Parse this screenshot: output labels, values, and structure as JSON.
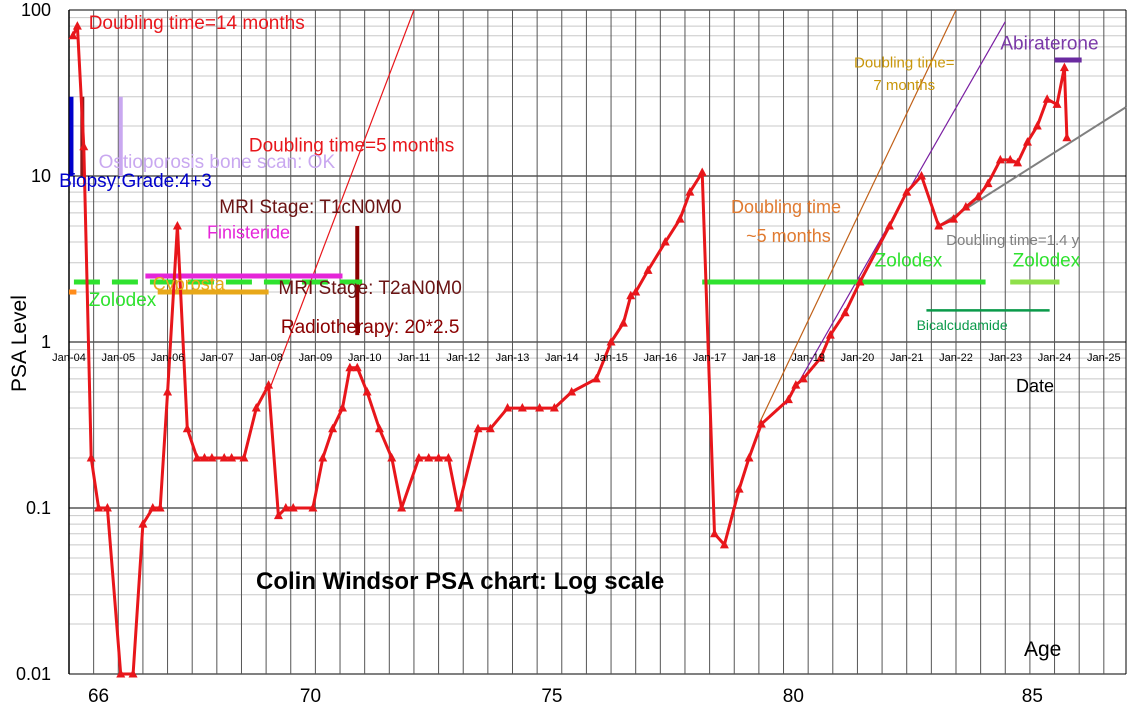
{
  "chart_data": {
    "type": "line",
    "title": "Colin Windsor PSA chart: Log scale",
    "ylabel": "PSA Level",
    "xlabel": "Date",
    "age_label": "Age",
    "yscale": "log",
    "ylim": [
      0.01,
      100
    ],
    "xlim": [
      "Jan-04",
      "Jan-25"
    ],
    "grid": true,
    "y_ticks": [
      "0.01",
      "0.1",
      "1",
      "10",
      "100"
    ],
    "x_ticks": [
      "Jan-04",
      "Jan-05",
      "Jan-06",
      "Jan-07",
      "Jan-08",
      "Jan-09",
      "Jan-10",
      "Jan-11",
      "Jan-12",
      "Jan-13",
      "Jan-14",
      "Jan-15",
      "Jan-16",
      "Jan-17",
      "Jan-18",
      "Jan-19",
      "Jan-20",
      "Jan-21",
      "Jan-22",
      "Jan-23",
      "Jan-24",
      "Jan-25"
    ],
    "age_ticks": [
      {
        "label": "66",
        "t": 2004.6
      },
      {
        "label": "70",
        "t": 2008.9
      },
      {
        "label": "75",
        "t": 2013.8
      },
      {
        "label": "80",
        "t": 2018.7
      },
      {
        "label": "85",
        "t": 2023.55
      }
    ],
    "series": [
      {
        "color": "#e8161b",
        "points": [
          [
            2004.08,
            70
          ],
          [
            2004.17,
            80
          ],
          [
            2004.3,
            15
          ],
          [
            2004.45,
            0.2
          ],
          [
            2004.6,
            0.1
          ],
          [
            2004.78,
            0.1
          ],
          [
            2005.05,
            0.01
          ],
          [
            2005.3,
            0.01
          ],
          [
            2005.5,
            0.08
          ],
          [
            2005.7,
            0.1
          ],
          [
            2005.85,
            0.1
          ],
          [
            2006.0,
            0.5
          ],
          [
            2006.2,
            5
          ],
          [
            2006.4,
            0.3
          ],
          [
            2006.6,
            0.2
          ],
          [
            2006.75,
            0.2
          ],
          [
            2006.9,
            0.2
          ],
          [
            2007.15,
            0.2
          ],
          [
            2007.3,
            0.2
          ],
          [
            2007.55,
            0.2
          ],
          [
            2007.8,
            0.4
          ],
          [
            2008.05,
            0.55
          ],
          [
            2008.25,
            0.09
          ],
          [
            2008.4,
            0.1
          ],
          [
            2008.55,
            0.1
          ],
          [
            2008.95,
            0.1
          ],
          [
            2009.15,
            0.2
          ],
          [
            2009.35,
            0.3
          ],
          [
            2009.55,
            0.4
          ],
          [
            2009.7,
            0.7
          ],
          [
            2009.85,
            0.7
          ],
          [
            2010.05,
            0.5
          ],
          [
            2010.3,
            0.3
          ],
          [
            2010.55,
            0.2
          ],
          [
            2010.75,
            0.1
          ],
          [
            2011.1,
            0.2
          ],
          [
            2011.3,
            0.2
          ],
          [
            2011.5,
            0.2
          ],
          [
            2011.7,
            0.2
          ],
          [
            2011.9,
            0.1
          ],
          [
            2012.3,
            0.3
          ],
          [
            2012.55,
            0.3
          ],
          [
            2012.9,
            0.4
          ],
          [
            2013.2,
            0.4
          ],
          [
            2013.55,
            0.4
          ],
          [
            2013.85,
            0.4
          ],
          [
            2014.2,
            0.5
          ],
          [
            2014.7,
            0.6
          ],
          [
            2015.0,
            1.0
          ],
          [
            2015.25,
            1.3
          ],
          [
            2015.4,
            1.9
          ],
          [
            2015.5,
            2.0
          ],
          [
            2015.75,
            2.7
          ],
          [
            2016.1,
            4.0
          ],
          [
            2016.4,
            5.5
          ],
          [
            2016.6,
            8.0
          ],
          [
            2016.85,
            10.5
          ],
          [
            2017.1,
            0.07
          ],
          [
            2017.3,
            0.06
          ],
          [
            2017.6,
            0.13
          ],
          [
            2017.8,
            0.2
          ],
          [
            2018.05,
            0.32
          ],
          [
            2018.6,
            0.45
          ],
          [
            2018.75,
            0.55
          ],
          [
            2018.9,
            0.6
          ],
          [
            2019.25,
            0.8
          ],
          [
            2019.45,
            1.1
          ],
          [
            2019.75,
            1.5
          ],
          [
            2020.05,
            2.3
          ],
          [
            2020.65,
            5.0
          ],
          [
            2021.0,
            8.0
          ],
          [
            2021.3,
            10.0
          ],
          [
            2021.65,
            5.0
          ],
          [
            2021.95,
            5.5
          ],
          [
            2022.2,
            6.5
          ],
          [
            2022.45,
            7.5
          ],
          [
            2022.65,
            9.0
          ],
          [
            2022.9,
            12.5
          ],
          [
            2023.1,
            12.5
          ],
          [
            2023.25,
            12.0
          ],
          [
            2023.45,
            16.0
          ],
          [
            2023.65,
            20.0
          ],
          [
            2023.85,
            29.0
          ],
          [
            2024.05,
            27.0
          ],
          [
            2024.2,
            45.0
          ],
          [
            2024.25,
            17.0
          ]
        ]
      }
    ],
    "trend_lines": [
      {
        "color": "#e8161b",
        "from": [
          2008.05,
          0.5
        ],
        "to": [
          2011.0,
          100
        ]
      },
      {
        "color": "#c06018",
        "from": [
          2018.0,
          0.32
        ],
        "to": [
          2022.0,
          100
        ]
      },
      {
        "color": "#7a1fa2",
        "from": [
          2018.55,
          0.42
        ],
        "to": [
          2023.0,
          85
        ]
      },
      {
        "color": "#808080",
        "from": [
          2021.65,
          5.0
        ],
        "to": [
          2025.45,
          26
        ]
      }
    ],
    "vertical_bars": [
      {
        "color": "#0000cc",
        "t": 2004.05,
        "y_from": 10,
        "y_to": 30
      },
      {
        "color": "#8b1a1a",
        "t": 2004.27,
        "y_from": 10,
        "y_to": 30
      },
      {
        "color": "#c9a8f0",
        "t": 2005.05,
        "y_from": 10,
        "y_to": 30
      },
      {
        "color": "#8b0000",
        "t": 2009.85,
        "y_from": 1.1,
        "y_to": 5
      }
    ],
    "treatment_bars": [
      {
        "color": "#2fe22f",
        "dash": true,
        "from": 2004.1,
        "to": 2009.95,
        "y": 2.3
      },
      {
        "color": "#e526d8",
        "dash": false,
        "from": 2005.55,
        "to": 2009.55,
        "y": 2.5
      },
      {
        "color": "#e8a81a",
        "dash": false,
        "from": 2005.8,
        "to": 2008.05,
        "y": 2.0
      },
      {
        "color": "#ff8c1a",
        "dash": false,
        "from": 2004.0,
        "to": 2004.15,
        "y": 2.0
      },
      {
        "color": "#2fe22f",
        "dash": false,
        "from": 2016.85,
        "to": 2022.6,
        "y": 2.3
      },
      {
        "color": "#8fe04a",
        "dash": false,
        "from": 2023.1,
        "to": 2024.1,
        "y": 2.3
      },
      {
        "color": "#0a9a4a",
        "dash": false,
        "from": 2021.4,
        "to": 2023.9,
        "y": 1.55
      },
      {
        "color": "#6a2aa0",
        "dash": false,
        "from": 2024.0,
        "to": 2024.55,
        "y": 50
      }
    ],
    "annotations": [
      {
        "text": "Doubling time=14 months",
        "color": "#e8161b",
        "size": 19,
        "t": 2004.4,
        "y": 77,
        "anchor": "start"
      },
      {
        "text": "Doubling time=5 months",
        "color": "#e8161b",
        "size": 19,
        "t": 2007.65,
        "y": 14,
        "anchor": "start"
      },
      {
        "text": "Ostioporosis bone scan: OK",
        "color": "#c9a8f0",
        "size": 19,
        "t": 2004.6,
        "y": 11.2,
        "anchor": "start"
      },
      {
        "text": "Biopsy:Grade:4+3",
        "color": "#0000cc",
        "size": 19,
        "t": 2003.8,
        "y": 8.6,
        "anchor": "start"
      },
      {
        "text": "MRI Stage: T1cN0M0",
        "color": "#6b1414",
        "size": 19,
        "t": 2007.05,
        "y": 6.0,
        "anchor": "start"
      },
      {
        "text": "Finisteride",
        "color": "#e526d8",
        "size": 18,
        "t": 2006.8,
        "y": 4.2,
        "anchor": "start"
      },
      {
        "text": "Cyprosta",
        "color": "#e8a81a",
        "size": 18,
        "t": 2005.7,
        "y": 2.05,
        "anchor": "start"
      },
      {
        "text": "MRI Stage: T2aN0M0",
        "color": "#6b1414",
        "size": 19,
        "t": 2008.25,
        "y": 1.95,
        "anchor": "start"
      },
      {
        "text": "Zolodex",
        "color": "#2fe22f",
        "size": 19,
        "t": 2004.4,
        "y": 1.65,
        "anchor": "start"
      },
      {
        "text": "Radiotherapy: 20*2.5",
        "color": "#8b0000",
        "size": 19,
        "t": 2008.3,
        "y": 1.13,
        "anchor": "start"
      },
      {
        "text": "Doubling time",
        "color": "#e07a30",
        "size": 18,
        "t": 2018.55,
        "y": 6.0,
        "anchor": "middle"
      },
      {
        "text": "~5 months",
        "color": "#e07a30",
        "size": 18,
        "t": 2018.6,
        "y": 4.0,
        "anchor": "middle"
      },
      {
        "text": "Doubling time=",
        "color": "#c8960a",
        "size": 15,
        "t": 2020.95,
        "y": 45,
        "anchor": "middle"
      },
      {
        "text": "7 months",
        "color": "#c8960a",
        "size": 15,
        "t": 2020.95,
        "y": 33,
        "anchor": "middle"
      },
      {
        "text": "Abiraterone",
        "color": "#7b3aa8",
        "size": 19,
        "t": 2022.9,
        "y": 58,
        "anchor": "start"
      },
      {
        "text": "Doubling time=1.4 y",
        "color": "#808080",
        "size": 15,
        "t": 2021.8,
        "y": 3.85,
        "anchor": "start"
      },
      {
        "text": "Zolodex",
        "color": "#2fe22f",
        "size": 19,
        "t": 2020.35,
        "y": 2.85,
        "anchor": "start"
      },
      {
        "text": "Zolodex",
        "color": "#2fe22f",
        "size": 19,
        "t": 2023.15,
        "y": 2.85,
        "anchor": "start"
      },
      {
        "text": "Bicalcudamide",
        "color": "#0a9a4a",
        "size": 14,
        "t": 2021.2,
        "y": 1.18,
        "anchor": "start"
      }
    ]
  }
}
